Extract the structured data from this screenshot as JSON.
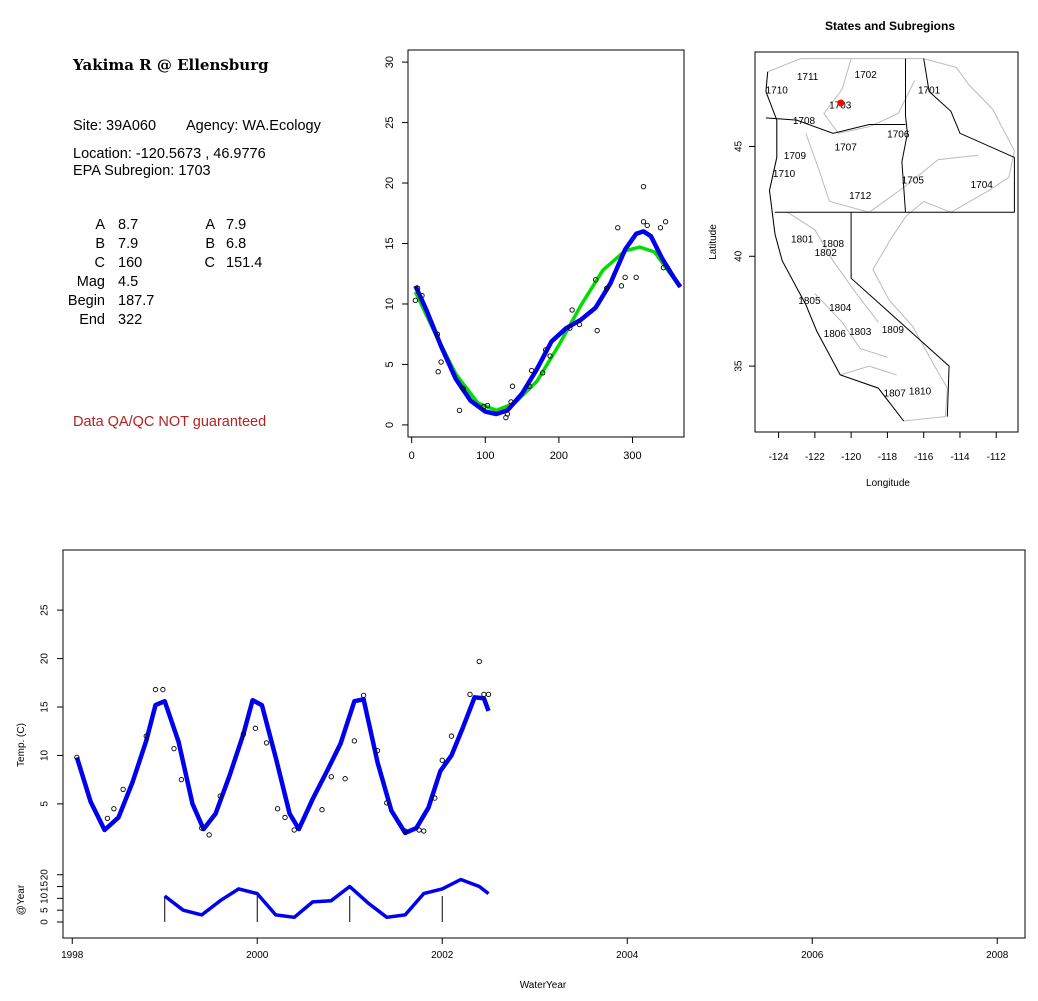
{
  "info": {
    "site_title": "Yakima R @ Ellensburg",
    "site_line": "Site: 39A060",
    "agency_line": "Agency: WA.Ecology",
    "location_line": "Location: -120.5673 , 46.9776",
    "subregion_line": "EPA Subregion: 1703",
    "params_left": [
      {
        "label": "A",
        "value": "8.7"
      },
      {
        "label": "B",
        "value": "7.9"
      },
      {
        "label": "C",
        "value": "160"
      },
      {
        "label": "Mag",
        "value": "4.5"
      },
      {
        "label": "Begin",
        "value": "187.7"
      },
      {
        "label": "End",
        "value": "322"
      }
    ],
    "params_right": [
      {
        "label": "A",
        "value": "7.9"
      },
      {
        "label": "B",
        "value": "6.8"
      },
      {
        "label": "C",
        "value": "151.4"
      }
    ],
    "qa_note": "Data QA/QC NOT guaranteed"
  },
  "chart_data": [
    {
      "type": "scatter",
      "title": "",
      "xlabel": "",
      "ylabel": "",
      "xlim": [
        -5,
        370
      ],
      "ylim": [
        -1,
        31
      ],
      "x_ticks": [
        0,
        100,
        200,
        300
      ],
      "y_ticks": [
        0,
        5,
        10,
        15,
        20,
        25,
        30
      ],
      "colors": {
        "points": "#000000",
        "harmonic_fit": "#00dd00",
        "smooth_fit": "#0000ee"
      },
      "points": [
        [
          5,
          10.3
        ],
        [
          8,
          11.3
        ],
        [
          14,
          10.7
        ],
        [
          35,
          7.5
        ],
        [
          36,
          4.4
        ],
        [
          40,
          5.2
        ],
        [
          65,
          1.2
        ],
        [
          70,
          3.0
        ],
        [
          98,
          1.5
        ],
        [
          103,
          1.6
        ],
        [
          128,
          0.6
        ],
        [
          130,
          0.9
        ],
        [
          135,
          1.9
        ],
        [
          137,
          3.2
        ],
        [
          160,
          3.2
        ],
        [
          163,
          4.5
        ],
        [
          178,
          4.3
        ],
        [
          182,
          6.2
        ],
        [
          188,
          5.7
        ],
        [
          215,
          8.0
        ],
        [
          218,
          9.5
        ],
        [
          228,
          8.3
        ],
        [
          250,
          12.0
        ],
        [
          252,
          7.8
        ],
        [
          265,
          11.3
        ],
        [
          280,
          16.3
        ],
        [
          285,
          11.5
        ],
        [
          290,
          12.2
        ],
        [
          305,
          12.2
        ],
        [
          315,
          16.8
        ],
        [
          315,
          19.7
        ],
        [
          320,
          16.5
        ],
        [
          338,
          16.3
        ],
        [
          342,
          13.0
        ],
        [
          345,
          16.8
        ]
      ],
      "series": [
        {
          "color": "#00dd00",
          "x": [
            5,
            30,
            60,
            90,
            115,
            140,
            170,
            200,
            230,
            260,
            290,
            310,
            330,
            350,
            365
          ],
          "y": [
            11.0,
            7.8,
            4.2,
            1.8,
            1.2,
            1.8,
            3.6,
            6.6,
            9.9,
            12.8,
            14.4,
            14.7,
            14.3,
            12.6,
            11.5
          ]
        },
        {
          "color": "#0000ee",
          "x": [
            5,
            20,
            40,
            60,
            80,
            100,
            115,
            130,
            150,
            170,
            190,
            210,
            230,
            250,
            270,
            290,
            305,
            315,
            325,
            340,
            355,
            365
          ],
          "y": [
            11.5,
            9.5,
            6.5,
            3.8,
            2.0,
            1.1,
            0.9,
            1.2,
            2.6,
            4.6,
            6.9,
            8.0,
            8.7,
            9.7,
            11.7,
            14.5,
            15.8,
            16.0,
            15.6,
            13.8,
            12.3,
            11.4
          ]
        }
      ]
    },
    {
      "type": "map",
      "title": "States and Subregions",
      "xlabel": "Longitude",
      "ylabel": "Latitude",
      "xlim": [
        -125.3,
        -110.8
      ],
      "ylim": [
        32.0,
        49.3
      ],
      "x_ticks": [
        -124,
        -122,
        -120,
        -118,
        -116,
        -114,
        -112
      ],
      "y_ticks": [
        35,
        40,
        45
      ],
      "site_point": {
        "lon": -120.5673,
        "lat": 46.9776,
        "color": "#ff0000"
      },
      "region_labels": [
        {
          "text": "1702",
          "lon": -119.2,
          "lat": 48.3
        },
        {
          "text": "1701",
          "lon": -115.7,
          "lat": 47.6
        },
        {
          "text": "1711",
          "lon": -122.4,
          "lat": 48.2
        },
        {
          "text": "1710",
          "lon": -124.1,
          "lat": 47.6
        },
        {
          "text": "1703",
          "lon": -120.6,
          "lat": 46.9
        },
        {
          "text": "1708",
          "lon": -122.6,
          "lat": 46.2
        },
        {
          "text": "1706",
          "lon": -117.4,
          "lat": 45.6
        },
        {
          "text": "1707",
          "lon": -120.3,
          "lat": 45.0
        },
        {
          "text": "1709",
          "lon": -123.1,
          "lat": 44.6
        },
        {
          "text": "1710",
          "lon": -123.7,
          "lat": 43.8
        },
        {
          "text": "1705",
          "lon": -116.6,
          "lat": 43.5
        },
        {
          "text": "1704",
          "lon": -112.8,
          "lat": 43.3
        },
        {
          "text": "1712",
          "lon": -119.5,
          "lat": 42.8
        },
        {
          "text": "1801",
          "lon": -122.7,
          "lat": 40.8
        },
        {
          "text": "1808",
          "lon": -121.0,
          "lat": 40.6
        },
        {
          "text": "1802",
          "lon": -121.4,
          "lat": 40.2
        },
        {
          "text": "1805",
          "lon": -122.3,
          "lat": 38.0
        },
        {
          "text": "1804",
          "lon": -120.6,
          "lat": 37.7
        },
        {
          "text": "1806",
          "lon": -120.9,
          "lat": 36.5
        },
        {
          "text": "1803",
          "lon": -119.5,
          "lat": 36.6
        },
        {
          "text": "1809",
          "lon": -117.7,
          "lat": 36.7
        },
        {
          "text": "1810",
          "lon": -116.2,
          "lat": 33.9
        },
        {
          "text": "1807",
          "lon": -117.6,
          "lat": 33.8
        }
      ]
    },
    {
      "type": "line",
      "title": "",
      "xlabel": "WaterYear",
      "ylabel": "Temp. (C)",
      "ylabel2": "@Year",
      "xlim": [
        1997.9,
        2008.3
      ],
      "ylim": [
        -1,
        31
      ],
      "x_ticks": [
        1998,
        2000,
        2002,
        2004,
        2006,
        2008
      ],
      "y_ticks": [
        5,
        10,
        15,
        20,
        25
      ],
      "y2_ticks": [
        0,
        5,
        10,
        15,
        20
      ],
      "colors": {
        "points": "#000000",
        "fit": "#0000ee"
      },
      "points": [
        [
          1998.05,
          9.8
        ],
        [
          1998.38,
          3.5
        ],
        [
          1998.45,
          4.5
        ],
        [
          1998.55,
          6.5
        ],
        [
          1998.8,
          12.0
        ],
        [
          1998.9,
          16.8
        ],
        [
          1998.98,
          16.8
        ],
        [
          1999.1,
          10.7
        ],
        [
          1999.18,
          7.5
        ],
        [
          1999.4,
          2.5
        ],
        [
          1999.48,
          1.8
        ],
        [
          1999.6,
          5.8
        ],
        [
          1999.85,
          12.2
        ],
        [
          1999.98,
          12.8
        ],
        [
          2000.1,
          11.3
        ],
        [
          2000.22,
          4.5
        ],
        [
          2000.3,
          3.6
        ],
        [
          2000.4,
          2.3
        ],
        [
          2000.7,
          4.4
        ],
        [
          2000.8,
          7.8
        ],
        [
          2000.95,
          7.6
        ],
        [
          2001.05,
          11.5
        ],
        [
          2001.15,
          16.2
        ],
        [
          2001.3,
          10.5
        ],
        [
          2001.4,
          5.1
        ],
        [
          2001.6,
          2.2
        ],
        [
          2001.75,
          2.3
        ],
        [
          2001.8,
          2.2
        ],
        [
          2001.92,
          5.6
        ],
        [
          2002.0,
          9.5
        ],
        [
          2002.1,
          12.0
        ],
        [
          2002.3,
          16.3
        ],
        [
          2002.4,
          19.7
        ],
        [
          2002.45,
          16.3
        ],
        [
          2002.5,
          16.3
        ]
      ],
      "fit_x": [
        1998.05,
        1998.2,
        1998.35,
        1998.5,
        1998.65,
        1998.8,
        1998.9,
        1999.0,
        1999.15,
        1999.3,
        1999.42,
        1999.55,
        1999.7,
        1999.85,
        1999.95,
        2000.05,
        2000.2,
        2000.35,
        2000.45,
        2000.6,
        2000.75,
        2000.9,
        2001.05,
        2001.15,
        2001.3,
        2001.45,
        2001.6,
        2001.72,
        2001.85,
        2001.98,
        2002.1,
        2002.22,
        2002.35,
        2002.45,
        2002.5
      ],
      "fit_y": [
        9.8,
        5.2,
        2.3,
        3.6,
        7.2,
        11.5,
        15.2,
        15.6,
        11.4,
        5.0,
        2.4,
        4.0,
        7.9,
        12.2,
        15.7,
        15.2,
        9.8,
        4.0,
        2.4,
        5.5,
        8.3,
        11.2,
        15.6,
        15.8,
        9.3,
        4.3,
        2.0,
        2.5,
        4.6,
        8.4,
        10.0,
        12.8,
        16.0,
        15.9,
        14.6
      ],
      "annual_x": [
        1999.0,
        1999.2,
        1999.4,
        1999.6,
        1999.8,
        2000.0,
        2000.2,
        2000.4,
        2000.6,
        2000.8,
        2001.0,
        2001.2,
        2001.4,
        2001.6,
        2001.8,
        2002.0,
        2002.2,
        2002.4,
        2002.5
      ],
      "annual_y": [
        11.0,
        5.0,
        3.0,
        9.0,
        14.0,
        12.0,
        3.0,
        2.0,
        8.5,
        9.0,
        15.0,
        8.0,
        2.0,
        3.0,
        12.0,
        14.0,
        18.0,
        15.0,
        12.0
      ],
      "year_marks": [
        1999,
        2000,
        2001,
        2002
      ]
    }
  ]
}
